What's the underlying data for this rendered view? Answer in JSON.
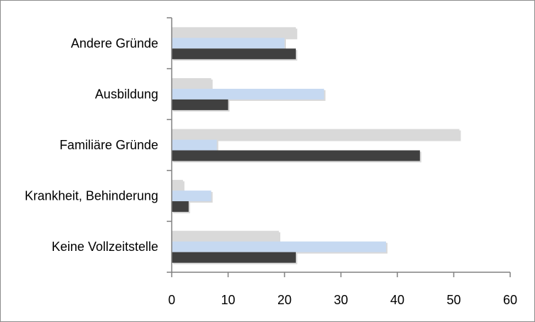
{
  "chart_data": {
    "type": "bar",
    "orientation": "horizontal",
    "categories": [
      "Andere Gründe",
      "Ausbildung",
      "Familiäre Gründe",
      "Krankheit, Behinderung",
      "Keine Vollzeitstelle"
    ],
    "series": [
      {
        "values": [
          22,
          7,
          51,
          2,
          19
        ],
        "color": "#d9d9d9"
      },
      {
        "values": [
          20,
          27,
          8,
          7,
          38
        ],
        "color": "#c6d9f1"
      },
      {
        "values": [
          22,
          10,
          44,
          3,
          22
        ],
        "color": "#404040"
      }
    ],
    "xlim": [
      0,
      60
    ],
    "xticks": [
      0,
      10,
      20,
      30,
      40,
      50,
      60
    ],
    "grid": false,
    "legend": "none"
  }
}
